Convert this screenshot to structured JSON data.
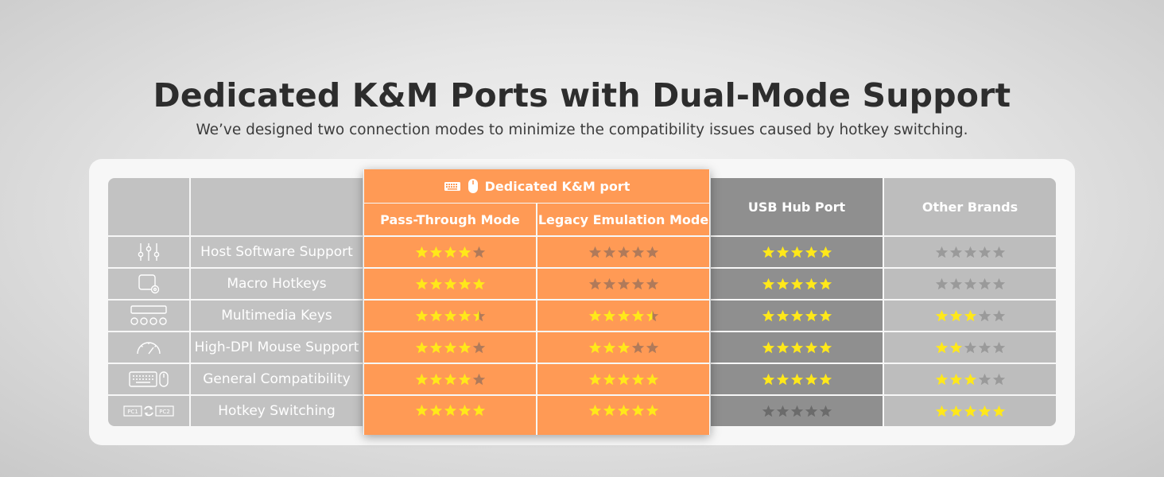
{
  "title": "Dedicated K&M Ports with Dual-Mode Support",
  "subtitle": "We’ve designed two connection modes to minimize the compatibility issues caused by hotkey switching.",
  "colors": {
    "left_bg": "#c2c2c2",
    "orange": "#ff9a55",
    "usb_bg": "#8f8f8f",
    "other_bg": "#bdbdbd",
    "star_on": "#ffe81a",
    "star_off_orange": "#b07a5a",
    "star_off_usb": "#6b6b6b",
    "star_off_other": "#9a9a9a"
  },
  "header": {
    "group_label": "Dedicated K&M port",
    "group_icons": [
      "keyboard-icon",
      "mouse-icon"
    ],
    "columns": [
      "Pass-Through Mode",
      "Legacy Emulation Mode",
      "USB Hub Port",
      "Other Brands"
    ]
  },
  "rows": [
    {
      "icon": "sliders-icon",
      "label": "Host Software Support",
      "ratings": [
        4,
        0,
        5,
        0
      ]
    },
    {
      "icon": "macro-key-icon",
      "label": "Macro Hotkeys",
      "ratings": [
        5,
        0,
        5,
        0
      ]
    },
    {
      "icon": "media-keys-icon",
      "label": "Multimedia Keys",
      "ratings": [
        4.5,
        4.5,
        5,
        3
      ]
    },
    {
      "icon": "speed-gauge-icon",
      "label": "High-DPI Mouse Support",
      "ratings": [
        4,
        3,
        5,
        2
      ]
    },
    {
      "icon": "keyboard-mouse-icon",
      "label": "General Compatibility",
      "ratings": [
        4,
        5,
        5,
        3
      ]
    },
    {
      "icon": "pc-switch-icon",
      "label": "Hotkey Switching",
      "ratings": [
        5,
        5,
        0,
        5
      ],
      "icon_text": [
        "PC1",
        "PC2"
      ]
    }
  ]
}
